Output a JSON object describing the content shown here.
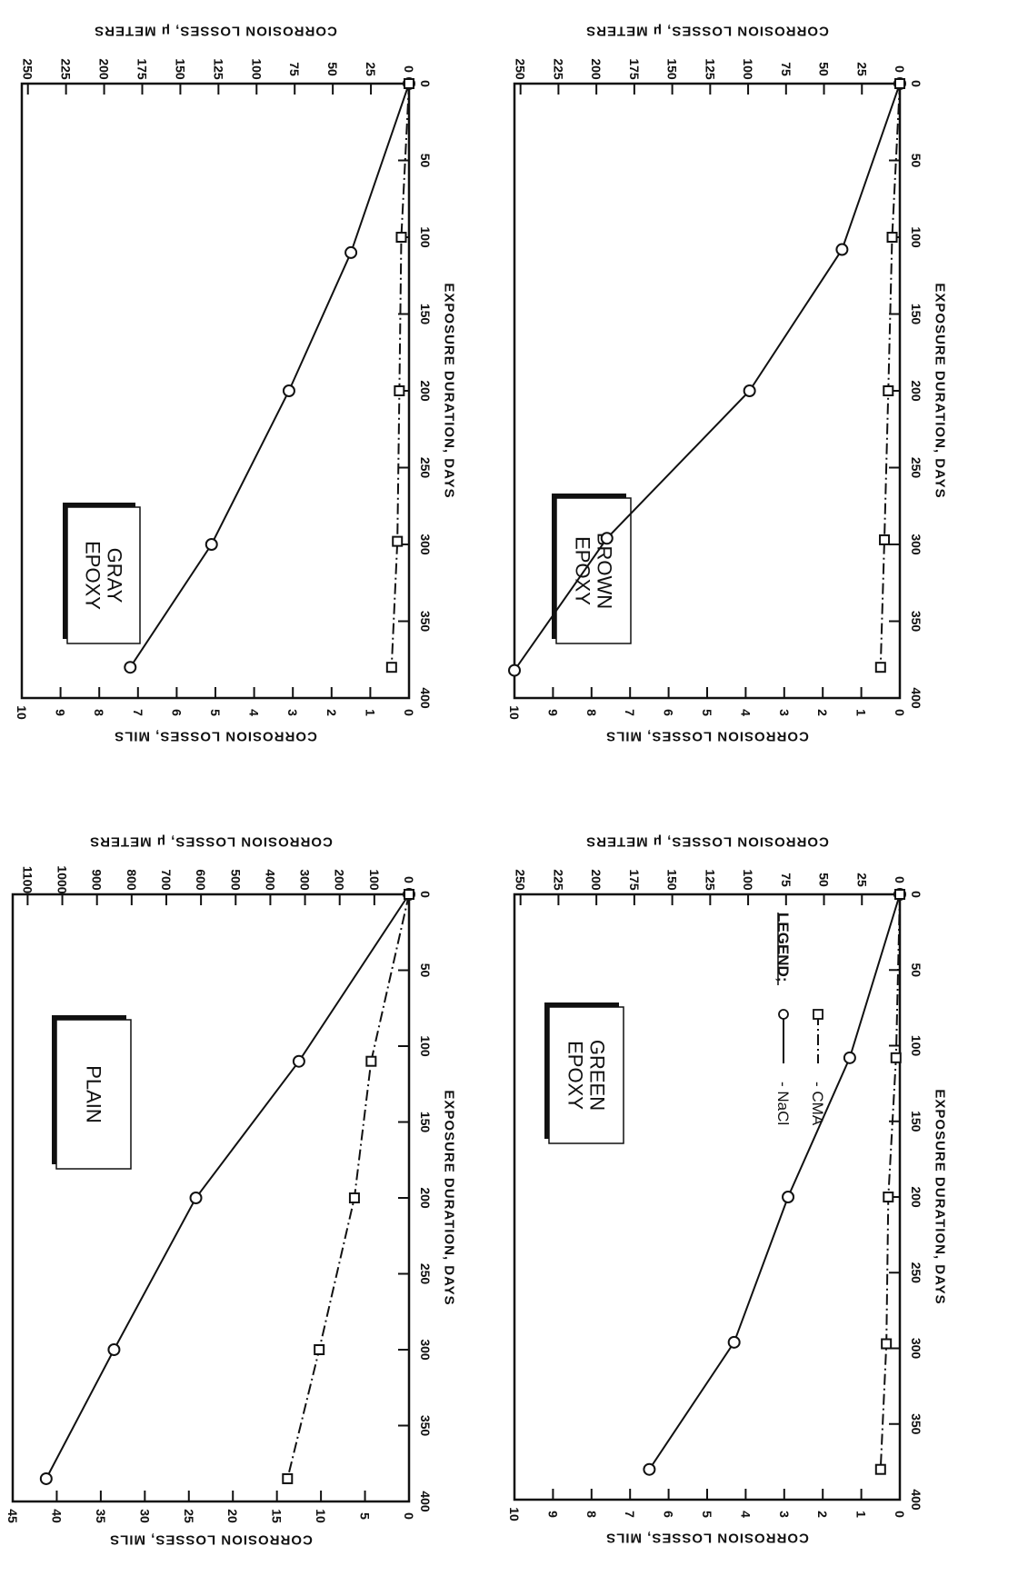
{
  "legend": {
    "title": "LEGEND;",
    "items": [
      {
        "marker": "circle",
        "line": "solid",
        "label": "- NaCl"
      },
      {
        "marker": "square",
        "line": "dash-dot",
        "label": "- CMA"
      }
    ]
  },
  "chart_data": [
    {
      "type": "line",
      "label_box": [
        "PLAIN"
      ],
      "xlabel": "EXPOSURE DURATION, DAYS",
      "ylabel_left": "CORROSION LOSSES, MILS",
      "ylabel_right": "CORROSION LOSSES, μ METERS",
      "xlim": [
        0,
        400
      ],
      "x_ticks": [
        0,
        50,
        100,
        150,
        200,
        250,
        300,
        350,
        400
      ],
      "ylim_left": [
        0,
        45
      ],
      "y_ticks_left": [
        0,
        5,
        10,
        15,
        20,
        25,
        30,
        35,
        40,
        45
      ],
      "right_ticks": [
        0,
        100,
        200,
        300,
        400,
        500,
        600,
        700,
        800,
        900,
        1000,
        1100
      ],
      "grid": false,
      "series": [
        {
          "name": "NaCl",
          "marker": "circle",
          "line": "solid",
          "x": [
            0,
            110,
            200,
            300,
            385
          ],
          "y": [
            0,
            12.5,
            24.2,
            33.5,
            41.2
          ]
        },
        {
          "name": "CMA",
          "marker": "square",
          "line": "dash-dot",
          "x": [
            0,
            110,
            200,
            300,
            385
          ],
          "y": [
            0,
            4.3,
            6.2,
            10.2,
            13.8
          ]
        }
      ]
    },
    {
      "type": "line",
      "label_box": [
        "GRAY",
        "EPOXY"
      ],
      "xlabel": "EXPOSURE DURATION, DAYS",
      "ylabel_left": "CORROSION LOSSES, MILS",
      "ylabel_right": "CORROSION LOSSES, μ METERS",
      "xlim": [
        0,
        400
      ],
      "x_ticks": [
        0,
        50,
        100,
        150,
        200,
        250,
        300,
        350,
        400
      ],
      "ylim_left": [
        0,
        10
      ],
      "y_ticks_left": [
        0,
        1,
        2,
        3,
        4,
        5,
        6,
        7,
        8,
        9,
        10
      ],
      "right_ticks": [
        0,
        25,
        50,
        75,
        100,
        125,
        150,
        175,
        200,
        225,
        250
      ],
      "grid": false,
      "series": [
        {
          "name": "NaCl",
          "marker": "circle",
          "line": "solid",
          "x": [
            0,
            110,
            200,
            300,
            380
          ],
          "y": [
            0,
            1.5,
            3.1,
            5.1,
            7.2
          ]
        },
        {
          "name": "CMA",
          "marker": "square",
          "line": "dash-dot",
          "x": [
            0,
            100,
            200,
            298,
            380
          ],
          "y": [
            0,
            0.2,
            0.25,
            0.3,
            0.45
          ]
        }
      ]
    },
    {
      "type": "line",
      "label_box": [
        "GREEN",
        "EPOXY"
      ],
      "xlabel": "EXPOSURE DURATION, DAYS",
      "ylabel_left": "CORROSION LOSSES, MILS",
      "ylabel_right": "CORROSION LOSSES, μ METERS",
      "xlim": [
        0,
        400
      ],
      "x_ticks": [
        0,
        50,
        100,
        150,
        200,
        250,
        300,
        350,
        400
      ],
      "ylim_left": [
        0,
        10
      ],
      "y_ticks_left": [
        0,
        1,
        2,
        3,
        4,
        5,
        6,
        7,
        8,
        9,
        10
      ],
      "right_ticks": [
        0,
        25,
        50,
        75,
        100,
        125,
        150,
        175,
        200,
        225,
        250
      ],
      "grid": false,
      "series": [
        {
          "name": "NaCl",
          "marker": "circle",
          "line": "solid",
          "x": [
            0,
            108,
            200,
            296,
            380
          ],
          "y": [
            0,
            1.3,
            2.9,
            4.3,
            6.5
          ]
        },
        {
          "name": "CMA",
          "marker": "square",
          "line": "dash-dot",
          "x": [
            0,
            108,
            200,
            297,
            380
          ],
          "y": [
            0,
            0.1,
            0.3,
            0.35,
            0.5
          ]
        }
      ]
    },
    {
      "type": "line",
      "label_box": [
        "BROWN",
        "EPOXY"
      ],
      "xlabel": "EXPOSURE DURATION, DAYS",
      "ylabel_left": "CORROSION LOSSES, MILS",
      "ylabel_right": "CORROSION LOSSES, μ METERS",
      "xlim": [
        0,
        400
      ],
      "x_ticks": [
        0,
        50,
        100,
        150,
        200,
        250,
        300,
        350,
        400
      ],
      "ylim_left": [
        0,
        10
      ],
      "y_ticks_left": [
        0,
        1,
        2,
        3,
        4,
        5,
        6,
        7,
        8,
        9,
        10
      ],
      "right_ticks": [
        0,
        25,
        50,
        75,
        100,
        125,
        150,
        175,
        200,
        225,
        250
      ],
      "grid": false,
      "series": [
        {
          "name": "NaCl",
          "marker": "circle",
          "line": "solid",
          "x": [
            0,
            108,
            200,
            296,
            382
          ],
          "y": [
            0,
            1.5,
            3.9,
            7.6,
            10.0
          ]
        },
        {
          "name": "CMA",
          "marker": "square",
          "line": "dash-dot",
          "x": [
            0,
            100,
            200,
            297,
            380
          ],
          "y": [
            0,
            0.2,
            0.3,
            0.4,
            0.5
          ]
        }
      ]
    }
  ]
}
